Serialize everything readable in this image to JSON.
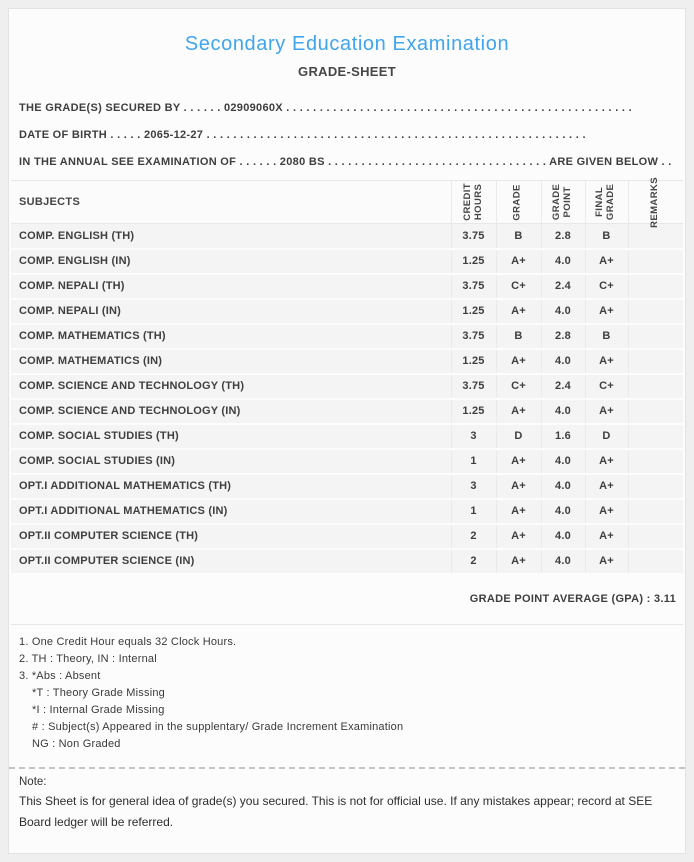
{
  "header": {
    "title": "Secondary Education Examination",
    "subtitle": "GRADE-SHEET"
  },
  "info_lines": [
    "THE GRADE(S) SECURED BY . . . . . . 02909060X . . . . . . . . . . . . . . . . . . . . . . . . . . . . . . . . . . . . . . . . . . . . . . . . . . . .",
    "DATE OF BIRTH . . . . . 2065-12-27 . . . . . . . . . . . . . . . . . . . . . . . . . . . . . . . . . . . . . . . . . . . . . . . . . . . . . . . . .",
    "IN THE ANNUAL SEE EXAMINATION OF . . . . . . 2080 BS . . . . . . . . . . . . . . . . . . . . . . . . . . . . . . . . . ARE GIVEN BELOW . . ."
  ],
  "student": {
    "symbol_number": "02909060X",
    "date_of_birth": "2065-12-27",
    "exam_year": "2080 BS"
  },
  "table": {
    "columns": {
      "subjects": "SUBJECTS",
      "credit_hours": "CREDIT\nHOURS",
      "grade": "GRADE",
      "grade_point": "GRADE\nPOINT",
      "final_grade": "FINAL\nGRADE",
      "remarks": "REMARKS"
    },
    "rows": [
      {
        "subject": "COMP. ENGLISH (TH)",
        "credit_hours": "3.75",
        "grade": "B",
        "grade_point": "2.8",
        "final_grade": "B",
        "remarks": ""
      },
      {
        "subject": "COMP. ENGLISH (IN)",
        "credit_hours": "1.25",
        "grade": "A+",
        "grade_point": "4.0",
        "final_grade": "A+",
        "remarks": ""
      },
      {
        "subject": "COMP. NEPALI (TH)",
        "credit_hours": "3.75",
        "grade": "C+",
        "grade_point": "2.4",
        "final_grade": "C+",
        "remarks": ""
      },
      {
        "subject": "COMP. NEPALI (IN)",
        "credit_hours": "1.25",
        "grade": "A+",
        "grade_point": "4.0",
        "final_grade": "A+",
        "remarks": ""
      },
      {
        "subject": "COMP. MATHEMATICS (TH)",
        "credit_hours": "3.75",
        "grade": "B",
        "grade_point": "2.8",
        "final_grade": "B",
        "remarks": ""
      },
      {
        "subject": "COMP. MATHEMATICS (IN)",
        "credit_hours": "1.25",
        "grade": "A+",
        "grade_point": "4.0",
        "final_grade": "A+",
        "remarks": ""
      },
      {
        "subject": "COMP. SCIENCE AND TECHNOLOGY (TH)",
        "credit_hours": "3.75",
        "grade": "C+",
        "grade_point": "2.4",
        "final_grade": "C+",
        "remarks": ""
      },
      {
        "subject": "COMP. SCIENCE AND TECHNOLOGY (IN)",
        "credit_hours": "1.25",
        "grade": "A+",
        "grade_point": "4.0",
        "final_grade": "A+",
        "remarks": ""
      },
      {
        "subject": "COMP. SOCIAL STUDIES (TH)",
        "credit_hours": "3",
        "grade": "D",
        "grade_point": "1.6",
        "final_grade": "D",
        "remarks": ""
      },
      {
        "subject": "COMP. SOCIAL STUDIES (IN)",
        "credit_hours": "1",
        "grade": "A+",
        "grade_point": "4.0",
        "final_grade": "A+",
        "remarks": ""
      },
      {
        "subject": "OPT.I ADDITIONAL MATHEMATICS (TH)",
        "credit_hours": "3",
        "grade": "A+",
        "grade_point": "4.0",
        "final_grade": "A+",
        "remarks": ""
      },
      {
        "subject": "OPT.I ADDITIONAL MATHEMATICS (IN)",
        "credit_hours": "1",
        "grade": "A+",
        "grade_point": "4.0",
        "final_grade": "A+",
        "remarks": ""
      },
      {
        "subject": "OPT.II COMPUTER SCIENCE (TH)",
        "credit_hours": "2",
        "grade": "A+",
        "grade_point": "4.0",
        "final_grade": "A+",
        "remarks": ""
      },
      {
        "subject": "OPT.II COMPUTER SCIENCE (IN)",
        "credit_hours": "2",
        "grade": "A+",
        "grade_point": "4.0",
        "final_grade": "A+",
        "remarks": ""
      }
    ]
  },
  "gpa": {
    "line": "GRADE POINT AVERAGE (GPA) : 3.11",
    "value": "3.11"
  },
  "legend_lines": [
    {
      "text": "1. One Credit Hour equals 32 Clock Hours.",
      "indent": 0
    },
    {
      "text": "2. TH : Theory, IN : Internal",
      "indent": 0
    },
    {
      "text": "3. *Abs : Absent",
      "indent": 0
    },
    {
      "text": "*T : Theory Grade Missing",
      "indent": 1
    },
    {
      "text": "*I : Internal Grade Missing",
      "indent": 1
    },
    {
      "text": "# : Subject(s) Appeared in the supplentary/ Grade Increment Examination",
      "indent": 1
    },
    {
      "text": "NG : Non Graded",
      "indent": 1
    }
  ],
  "footer": {
    "note_label": "Note:",
    "note_text": "This Sheet is for general idea of grade(s) you secured. This is not for official use. If any mistakes appear; record at SEE Board ledger will be referred."
  },
  "colors": {
    "title_blue": "#3fa5ee",
    "text_dark": "#3e3e3e",
    "row_bg": "#f4f4f4",
    "page_bg": "#efefef"
  }
}
